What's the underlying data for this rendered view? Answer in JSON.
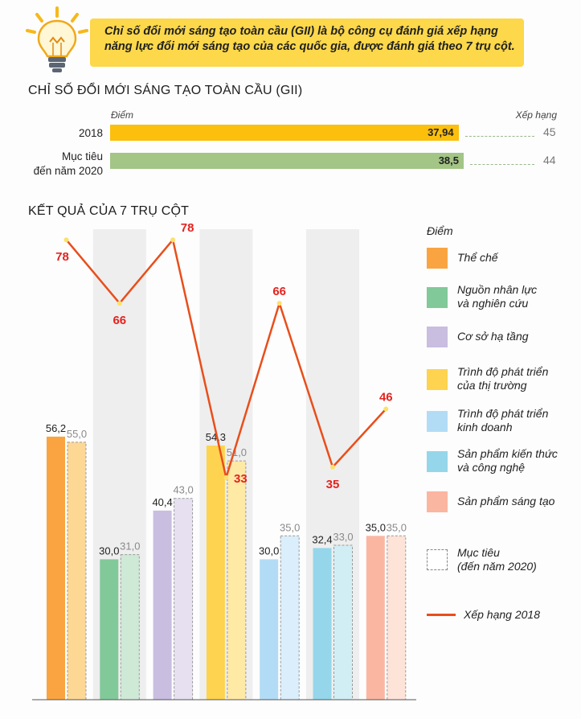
{
  "banner": {
    "line1": "Chỉ số đổi mới sáng tạo toàn cầu (GII) là bộ công cụ đánh giá xếp hạng",
    "line2": "năng lực đổi mới sáng tạo của các quốc gia, được đánh giá theo 7 trụ cột.",
    "icon": "light-bulb-icon"
  },
  "gii": {
    "title": "CHỈ SỐ ĐỔI MỚI SÁNG TẠO TOÀN CẦU (GII)",
    "score_label": "Điểm",
    "rank_label": "Xếp hạng",
    "rows": [
      {
        "label_lines": [
          "2018"
        ],
        "score": 37.94,
        "score_text": "37,94",
        "rank": 45,
        "color": "#fbbf0c"
      },
      {
        "label_lines": [
          "Mục tiêu",
          "đến năm 2020"
        ],
        "score": 38.5,
        "score_text": "38,5",
        "rank": 44,
        "color": "#a3c585"
      }
    ]
  },
  "pillars": {
    "title": "KẾT QUẢ CỦA 7 TRỤ CỘT",
    "legend_title": "Điểm",
    "target_legend_lines": [
      "Mục tiêu",
      "(đến năm 2020)"
    ],
    "rank_legend": "Xếp hạng 2018"
  },
  "chart_data": {
    "type": "bar",
    "categories": [
      "Thể chế",
      "Nguồn nhân lực và nghiên cứu",
      "Cơ sở hạ tầng",
      "Trình độ phát triển của thị trường",
      "Trình độ phát triển kinh doanh",
      "Sản phẩm kiến thức và công nghệ",
      "Sản phẩm sáng tạo"
    ],
    "legend_lines": [
      [
        "Thể chế"
      ],
      [
        "Nguồn nhân lực",
        "và nghiên cứu"
      ],
      [
        "Cơ sở hạ tầng"
      ],
      [
        "Trình độ phát triển",
        "của thị trường"
      ],
      [
        "Trình độ phát triển",
        "kinh doanh"
      ],
      [
        "Sản phẩm kiến thức",
        "và công nghệ"
      ],
      [
        "Sản phẩm sáng tạo"
      ]
    ],
    "colors": [
      "#f9a441",
      "#82c99a",
      "#c9bde0",
      "#fdd34f",
      "#b2dcf6",
      "#95d6ea",
      "#fbb6a2"
    ],
    "target_colors": [
      "#fdd894",
      "#cfe9d7",
      "#e6e0f1",
      "#fee9a5",
      "#dbeefb",
      "#d2eef5",
      "#fde3d8"
    ],
    "series": [
      {
        "name": "",
        "values": [
          56.2,
          30.0,
          40.4,
          54.3,
          30.0,
          32.4,
          35.0
        ],
        "labels": [
          "56,2",
          "30,0",
          "40,4",
          "54,3",
          "30,0",
          "32,4",
          "35,0"
        ]
      },
      {
        "name": "Mục tiêu (đến năm 2020)",
        "values": [
          55.0,
          31.0,
          43.0,
          51.0,
          35.0,
          33.0,
          35.0
        ],
        "labels": [
          "55,0",
          "31,0",
          "43,0",
          "51,0",
          "35,0",
          "33,0",
          "35,0"
        ]
      }
    ],
    "rank_series": {
      "name": "Xếp hạng 2018",
      "values": [
        78,
        66,
        78,
        33,
        66,
        35,
        46
      ],
      "color": "#e94e1b",
      "label_color": "#e4231f"
    }
  }
}
